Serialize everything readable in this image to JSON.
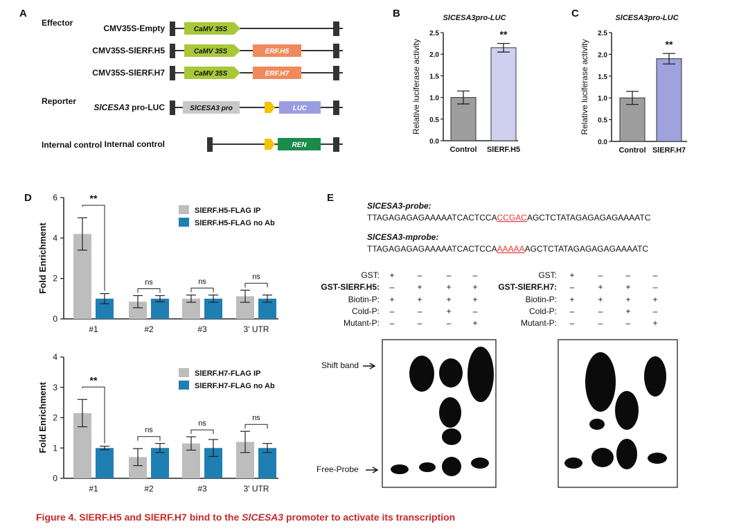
{
  "panel_a": {
    "letter": "A",
    "effector_label": "Effector",
    "reporter_label": "Reporter",
    "constructs": [
      {
        "name": "CMV35S-Empty",
        "parts": [
          "CaMV 35S"
        ]
      },
      {
        "name": "CMV35S-SlERF.H5",
        "parts": [
          "CaMV 35S",
          "ERF.H5"
        ]
      },
      {
        "name": "CMV35S-SlERF.H7",
        "parts": [
          "CaMV 35S",
          "ERF.H7"
        ]
      },
      {
        "name_italic": "SlCESA3",
        "name_rest": " pro-LUC",
        "parts": [
          "SlCESA3 pro",
          "LUC"
        ]
      },
      {
        "name": "Internal control",
        "parts": [
          "REN"
        ]
      }
    ],
    "colors": {
      "promoter": "#a8c83a",
      "erf": "#f08a5d",
      "slcesa3pro": "#c8c8c8",
      "luc": "#9a9ee0",
      "ren": "#1b8a4a",
      "arrow": "#f5c200"
    }
  },
  "chart_data": [
    {
      "panel": "B",
      "type": "bar",
      "title": "SlCESA3pro-LUC",
      "ylabel": "Relative luciferase activity",
      "categories": [
        "Control",
        "SlERF.H5"
      ],
      "values": [
        1.0,
        2.15
      ],
      "errors": [
        0.15,
        0.1
      ],
      "significance": [
        "",
        "**"
      ],
      "ylim": [
        0,
        2.5
      ],
      "yticks": [
        "0.0",
        "0.5",
        "1.0",
        "1.5",
        "2.0",
        "2.5"
      ],
      "colors": [
        "#9e9e9e",
        "#cfd0ef"
      ]
    },
    {
      "panel": "C",
      "type": "bar",
      "title": "SlCESA3pro-LUC",
      "ylabel": "Relative luciferase activity",
      "categories": [
        "Control",
        "SlERF.H7"
      ],
      "values": [
        1.0,
        1.9
      ],
      "errors": [
        0.15,
        0.12
      ],
      "significance": [
        "",
        "**"
      ],
      "ylim": [
        0,
        2.5
      ],
      "yticks": [
        "0.0",
        "0.5",
        "1.0",
        "1.5",
        "2.0",
        "2.5"
      ],
      "colors": [
        "#9e9e9e",
        "#9fa2dc"
      ]
    },
    {
      "panel": "D",
      "type": "bar",
      "ylabel": "Fold Enrichment",
      "categories": [
        "#1",
        "#2",
        "#3",
        "3' UTR"
      ],
      "series": [
        {
          "name": "SlERF.H5-FLAG IP",
          "values": [
            4.2,
            0.85,
            1.0,
            1.12
          ],
          "errors": [
            0.8,
            0.3,
            0.18,
            0.3
          ]
        },
        {
          "name": "SlERF.H5-FLAG no Ab",
          "values": [
            1.0,
            1.0,
            1.0,
            1.0
          ],
          "errors": [
            0.25,
            0.15,
            0.18,
            0.18
          ]
        }
      ],
      "significance": [
        "**",
        "ns",
        "ns",
        "ns"
      ],
      "ylim": [
        0,
        6
      ],
      "yticks": [
        "0",
        "2",
        "4",
        "6"
      ],
      "colors": [
        "#bdbdbd",
        "#1f7fb2"
      ],
      "legend": "top-right"
    },
    {
      "panel": "D",
      "type": "bar",
      "ylabel": "Fold Enrichment",
      "categories": [
        "#1",
        "#2",
        "#3",
        "3' UTR"
      ],
      "series": [
        {
          "name": "SlERF.H7-FLAG IP",
          "values": [
            2.15,
            0.7,
            1.15,
            1.2
          ],
          "errors": [
            0.45,
            0.28,
            0.22,
            0.35
          ]
        },
        {
          "name": "SlERF.H7-FLAG no Ab",
          "values": [
            1.0,
            1.0,
            1.0,
            1.0
          ],
          "errors": [
            0.06,
            0.15,
            0.28,
            0.15
          ]
        }
      ],
      "significance": [
        "**",
        "ns",
        "ns",
        "ns"
      ],
      "ylim": [
        0,
        4
      ],
      "yticks": [
        "0",
        "1",
        "2",
        "3",
        "4"
      ],
      "colors": [
        "#bdbdbd",
        "#1f7fb2"
      ],
      "legend": "top-right"
    }
  ],
  "panel_d": {
    "letter": "D"
  },
  "panel_e": {
    "letter": "E",
    "probe_label": "SlCESA3-probe",
    "probe_seq_pre": "TTAGAGAGAGAAAAATCACTCCA",
    "probe_seq_mid": "CCGAC",
    "probe_seq_post": "AGCTCTATAGAGAGAGAAAATC",
    "mprobe_label": "SlCESA3-mprobe",
    "mprobe_seq_pre": "TTAGAGAGAGAAAAATCACTCCA",
    "mprobe_seq_mid": "AAAAA",
    "mprobe_seq_post": "AGCTCTATAGAGAGAGAAAATC",
    "highlight_color": "#e53935",
    "gels": [
      {
        "row_labels": [
          "GST:",
          "GST-SlERF.H5:",
          "Biotin-P:",
          "Cold-P:",
          "Mutant-P:"
        ],
        "grid": [
          [
            "+",
            "–",
            "–",
            "–"
          ],
          [
            "–",
            "+",
            "+",
            "+"
          ],
          [
            "+",
            "+",
            "+",
            "+"
          ],
          [
            "–",
            "–",
            "+",
            "–"
          ],
          [
            "–",
            "–",
            "–",
            "+"
          ]
        ]
      },
      {
        "row_labels": [
          "GST:",
          "GST-SlERF.H7:",
          "Biotin-P:",
          "Cold-P:",
          "Mutant-P:"
        ],
        "grid": [
          [
            "+",
            "–",
            "–",
            "–"
          ],
          [
            "–",
            "+",
            "+",
            "–"
          ],
          [
            "+",
            "+",
            "+",
            "+"
          ],
          [
            "–",
            "–",
            "+",
            "–"
          ],
          [
            "–",
            "–",
            "–",
            "+"
          ]
        ]
      }
    ],
    "shift_band_label": "Shift band",
    "free_probe_label": "Free-Probe"
  },
  "caption": {
    "pre": "Figure 4.  SlERF.H5 and SlERF.H7 bind to the ",
    "italic": "SlCESA3",
    "post": " promoter to activate its transcription"
  }
}
